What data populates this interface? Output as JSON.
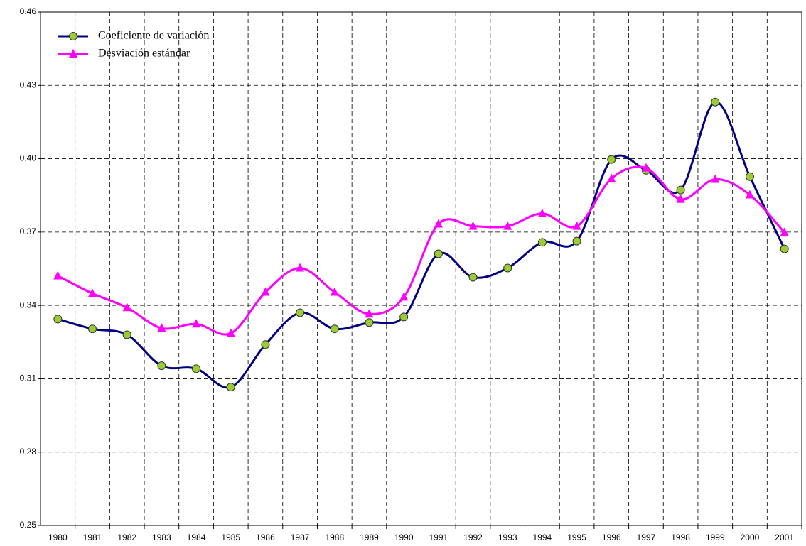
{
  "chart_data": {
    "type": "line",
    "categories": [
      "1980",
      "1981",
      "1982",
      "1983",
      "1984",
      "1985",
      "1986",
      "1987",
      "1988",
      "1989",
      "1990",
      "1991",
      "1992",
      "1993",
      "1994",
      "1995",
      "1996",
      "1997",
      "1998",
      "1999",
      "2000",
      "2001"
    ],
    "series": [
      {
        "name": "Coeficiente de variación",
        "color": "#000080",
        "marker": "circle",
        "marker_color": "#9acd32",
        "values": [
          0.3344,
          0.3304,
          0.328,
          0.3153,
          0.3141,
          0.3066,
          0.324,
          0.337,
          0.3304,
          0.333,
          0.3353,
          0.3611,
          0.3515,
          0.3553,
          0.3658,
          0.3663,
          0.3997,
          0.3953,
          0.3872,
          0.4232,
          0.3927,
          0.3631
        ]
      },
      {
        "name": "Desviación estándar",
        "color": "#ff00ff",
        "marker": "triangle",
        "marker_color": "#ff00ff",
        "values": [
          0.3521,
          0.3449,
          0.3391,
          0.3307,
          0.3324,
          0.3286,
          0.3454,
          0.3553,
          0.3454,
          0.3365,
          0.3434,
          0.3733,
          0.3724,
          0.3724,
          0.3776,
          0.3724,
          0.3919,
          0.3962,
          0.3834,
          0.3916,
          0.3852,
          0.3698
        ]
      }
    ],
    "ylim": [
      0.25,
      0.46
    ],
    "yticks": [
      0.25,
      0.28,
      0.31,
      0.34,
      0.37,
      {
        "value": 0.4,
        "label": "0.40"
      },
      0.43,
      0.46
    ],
    "grid": true,
    "smooth": true,
    "legend_position": "upper left"
  }
}
